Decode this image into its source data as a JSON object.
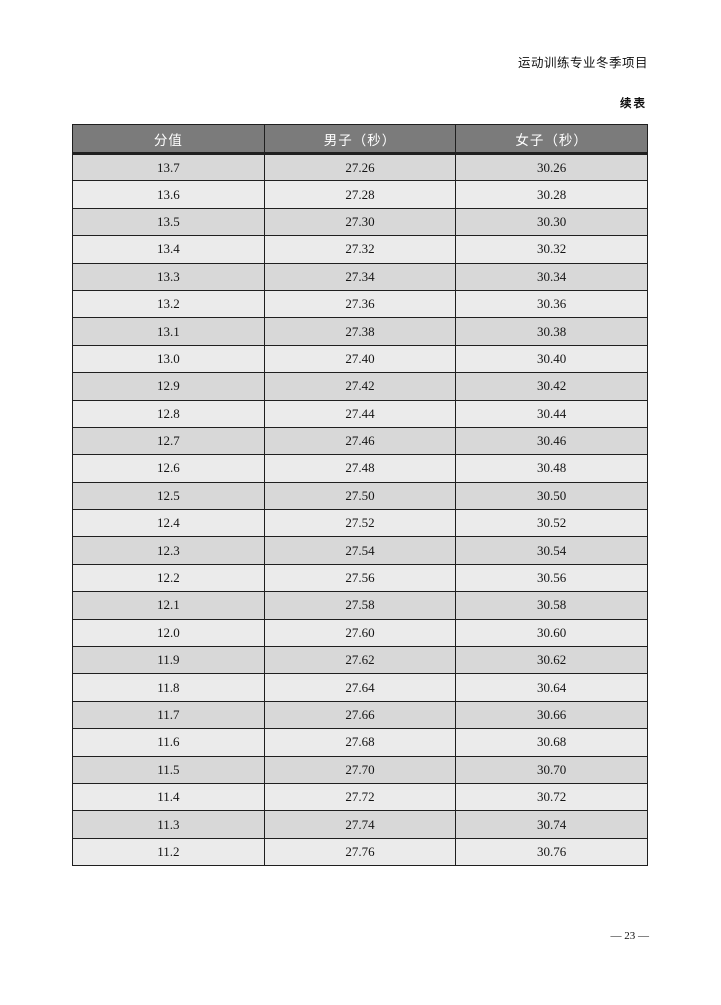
{
  "header": {
    "title": "运动训练专业冬季项目",
    "continuation_label": "续表"
  },
  "table": {
    "columns": [
      "分值",
      "男子（秒）",
      "女子（秒）"
    ],
    "rows": [
      [
        "13.7",
        "27.26",
        "30.26"
      ],
      [
        "13.6",
        "27.28",
        "30.28"
      ],
      [
        "13.5",
        "27.30",
        "30.30"
      ],
      [
        "13.4",
        "27.32",
        "30.32"
      ],
      [
        "13.3",
        "27.34",
        "30.34"
      ],
      [
        "13.2",
        "27.36",
        "30.36"
      ],
      [
        "13.1",
        "27.38",
        "30.38"
      ],
      [
        "13.0",
        "27.40",
        "30.40"
      ],
      [
        "12.9",
        "27.42",
        "30.42"
      ],
      [
        "12.8",
        "27.44",
        "30.44"
      ],
      [
        "12.7",
        "27.46",
        "30.46"
      ],
      [
        "12.6",
        "27.48",
        "30.48"
      ],
      [
        "12.5",
        "27.50",
        "30.50"
      ],
      [
        "12.4",
        "27.52",
        "30.52"
      ],
      [
        "12.3",
        "27.54",
        "30.54"
      ],
      [
        "12.2",
        "27.56",
        "30.56"
      ],
      [
        "12.1",
        "27.58",
        "30.58"
      ],
      [
        "12.0",
        "27.60",
        "30.60"
      ],
      [
        "11.9",
        "27.62",
        "30.62"
      ],
      [
        "11.8",
        "27.64",
        "30.64"
      ],
      [
        "11.7",
        "27.66",
        "30.66"
      ],
      [
        "11.6",
        "27.68",
        "30.68"
      ],
      [
        "11.5",
        "27.70",
        "30.70"
      ],
      [
        "11.4",
        "27.72",
        "30.72"
      ],
      [
        "11.3",
        "27.74",
        "30.74"
      ],
      [
        "11.2",
        "27.76",
        "30.76"
      ]
    ]
  },
  "footer": {
    "page_label": "— 23 —"
  },
  "colors": {
    "header_bg": "#7b7b7b",
    "row_odd": "#d8d8d8",
    "row_even": "#ebebeb",
    "border": "#1f1f1f",
    "header_text": "#ffffff"
  }
}
